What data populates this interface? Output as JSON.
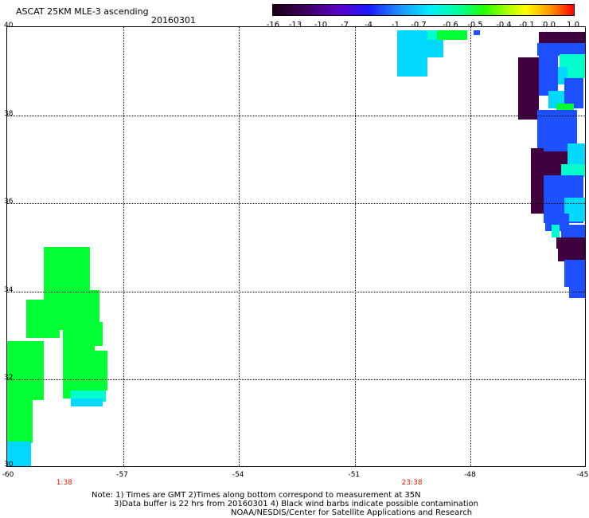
{
  "header": {
    "title": "ASCAT 25KM MLE-3 ascending",
    "date": "20160301"
  },
  "colorbar": {
    "tick_labels": [
      "-16",
      "-13",
      "-10",
      "-7",
      "-4",
      "-1",
      "-0.7",
      "-0.6",
      "-0.5",
      "-0.4",
      "-0.1",
      "0.0",
      "1.0"
    ]
  },
  "map": {
    "lat_labels": [
      "40",
      "38",
      "36",
      "34",
      "32",
      "30"
    ],
    "lon_labels": [
      "-60",
      "-57",
      "-54",
      "-51",
      "-48",
      "-45"
    ],
    "lon_range": [
      -60,
      -45
    ],
    "lat_range": [
      30,
      40
    ],
    "time_labels": [
      {
        "text": "1:38",
        "lon": -58.5
      },
      {
        "text": "23:38",
        "lon": -49.5
      }
    ],
    "colors": {
      "dark": "#400040",
      "blue": "#1e50ff",
      "light_blue": "#00d8ff",
      "green": "#00ff33",
      "cyan": "#00ffcc"
    }
  },
  "notes": {
    "line1": "Note: 1) Times are GMT 2)Times along bottom correspond to measurement at 35N",
    "line2": "3)Data buffer is 22 hrs from 20160301 4) Black wind barbs indicate possible contamination",
    "line3": "NOAA/NESDIS/Center for Satellite Applications and Research"
  }
}
